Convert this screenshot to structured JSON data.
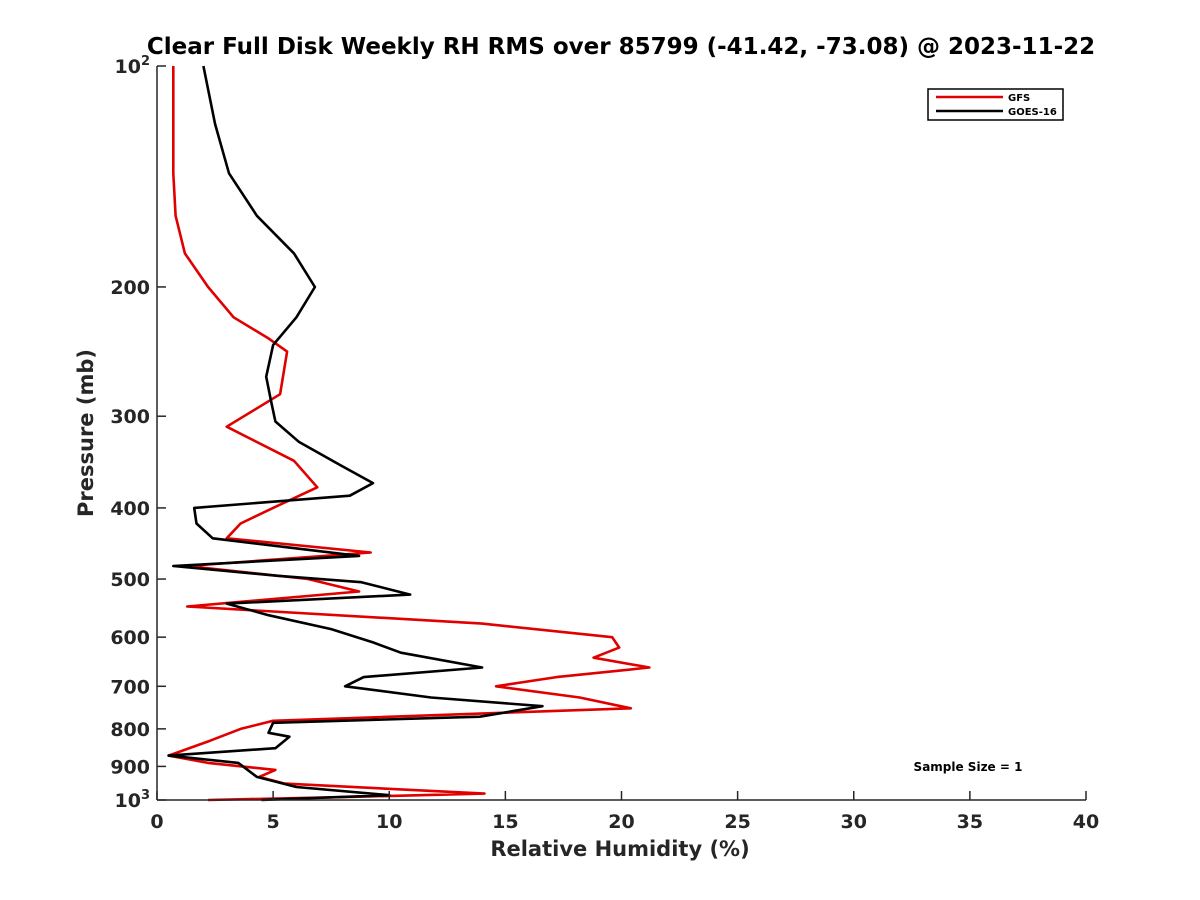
{
  "chart_data": {
    "type": "line",
    "title": "Clear Full Disk Weekly RH RMS over 85799 (-41.42, -73.08) @ 2023-11-22",
    "xlabel": "Relative Humidity (%)",
    "ylabel": "Pressure (mb)",
    "xlim": [
      0,
      40
    ],
    "ylim": [
      100,
      1000
    ],
    "y_scale": "log",
    "y_reversed": true,
    "xticks": [
      "0",
      "5",
      "10",
      "15",
      "20",
      "25",
      "30",
      "35",
      "40"
    ],
    "yticks": [
      {
        "value": 100,
        "label": "10",
        "sup": "2"
      },
      {
        "value": 200,
        "label": "200",
        "sup": ""
      },
      {
        "value": 300,
        "label": "300",
        "sup": ""
      },
      {
        "value": 400,
        "label": "400",
        "sup": ""
      },
      {
        "value": 500,
        "label": "500",
        "sup": ""
      },
      {
        "value": 600,
        "label": "600",
        "sup": ""
      },
      {
        "value": 700,
        "label": "700",
        "sup": ""
      },
      {
        "value": 800,
        "label": "800",
        "sup": ""
      },
      {
        "value": 900,
        "label": "900",
        "sup": ""
      },
      {
        "value": 1000,
        "label": "10",
        "sup": "3"
      }
    ],
    "grid": false,
    "legend_position": "top-right",
    "annotation": "Sample Size = 1",
    "series": [
      {
        "name": "GFS",
        "color": "#e00000",
        "x": [
          0.7,
          0.7,
          0.7,
          0.8,
          1.2,
          2.2,
          3.3,
          4.8,
          5.6,
          5.3,
          3.0,
          5.9,
          6.9,
          5.0,
          3.6,
          3.0,
          9.2,
          1.3,
          6.5,
          8.7,
          1.3,
          14.0,
          19.6,
          19.9,
          18.8,
          21.2,
          17.2,
          14.6,
          18.2,
          20.4,
          5.0,
          3.6,
          2.3,
          0.5,
          2.2,
          5.1,
          4.4,
          5.5,
          14.1,
          8.5,
          2.2
        ],
        "y": [
          100,
          120,
          140,
          160,
          180,
          200,
          220,
          235,
          245,
          280,
          310,
          345,
          375,
          400,
          420,
          440,
          460,
          480,
          500,
          520,
          545,
          575,
          600,
          620,
          640,
          660,
          680,
          700,
          725,
          750,
          780,
          800,
          830,
          870,
          890,
          910,
          930,
          950,
          980,
          990,
          1000
        ]
      },
      {
        "name": "GOES-16",
        "color": "#000000",
        "x": [
          2.0,
          2.5,
          3.1,
          4.3,
          5.9,
          6.8,
          6.0,
          5.0,
          4.7,
          4.9,
          5.1,
          6.1,
          7.9,
          9.3,
          8.3,
          1.6,
          1.7,
          2.4,
          8.7,
          0.7,
          5.2,
          8.8,
          10.9,
          3.0,
          4.8,
          7.5,
          9.3,
          10.5,
          14.0,
          8.9,
          8.1,
          11.8,
          16.6,
          13.9,
          5.0,
          4.8,
          5.7,
          5.1,
          0.5,
          3.5,
          4.3,
          6.0,
          10.0,
          4.5
        ],
        "y": [
          100,
          120,
          140,
          160,
          180,
          200,
          220,
          240,
          265,
          285,
          305,
          325,
          350,
          370,
          385,
          400,
          420,
          440,
          465,
          480,
          495,
          505,
          525,
          540,
          560,
          585,
          610,
          630,
          660,
          680,
          700,
          725,
          745,
          770,
          785,
          810,
          820,
          850,
          870,
          890,
          930,
          960,
          985,
          1000
        ]
      }
    ]
  }
}
